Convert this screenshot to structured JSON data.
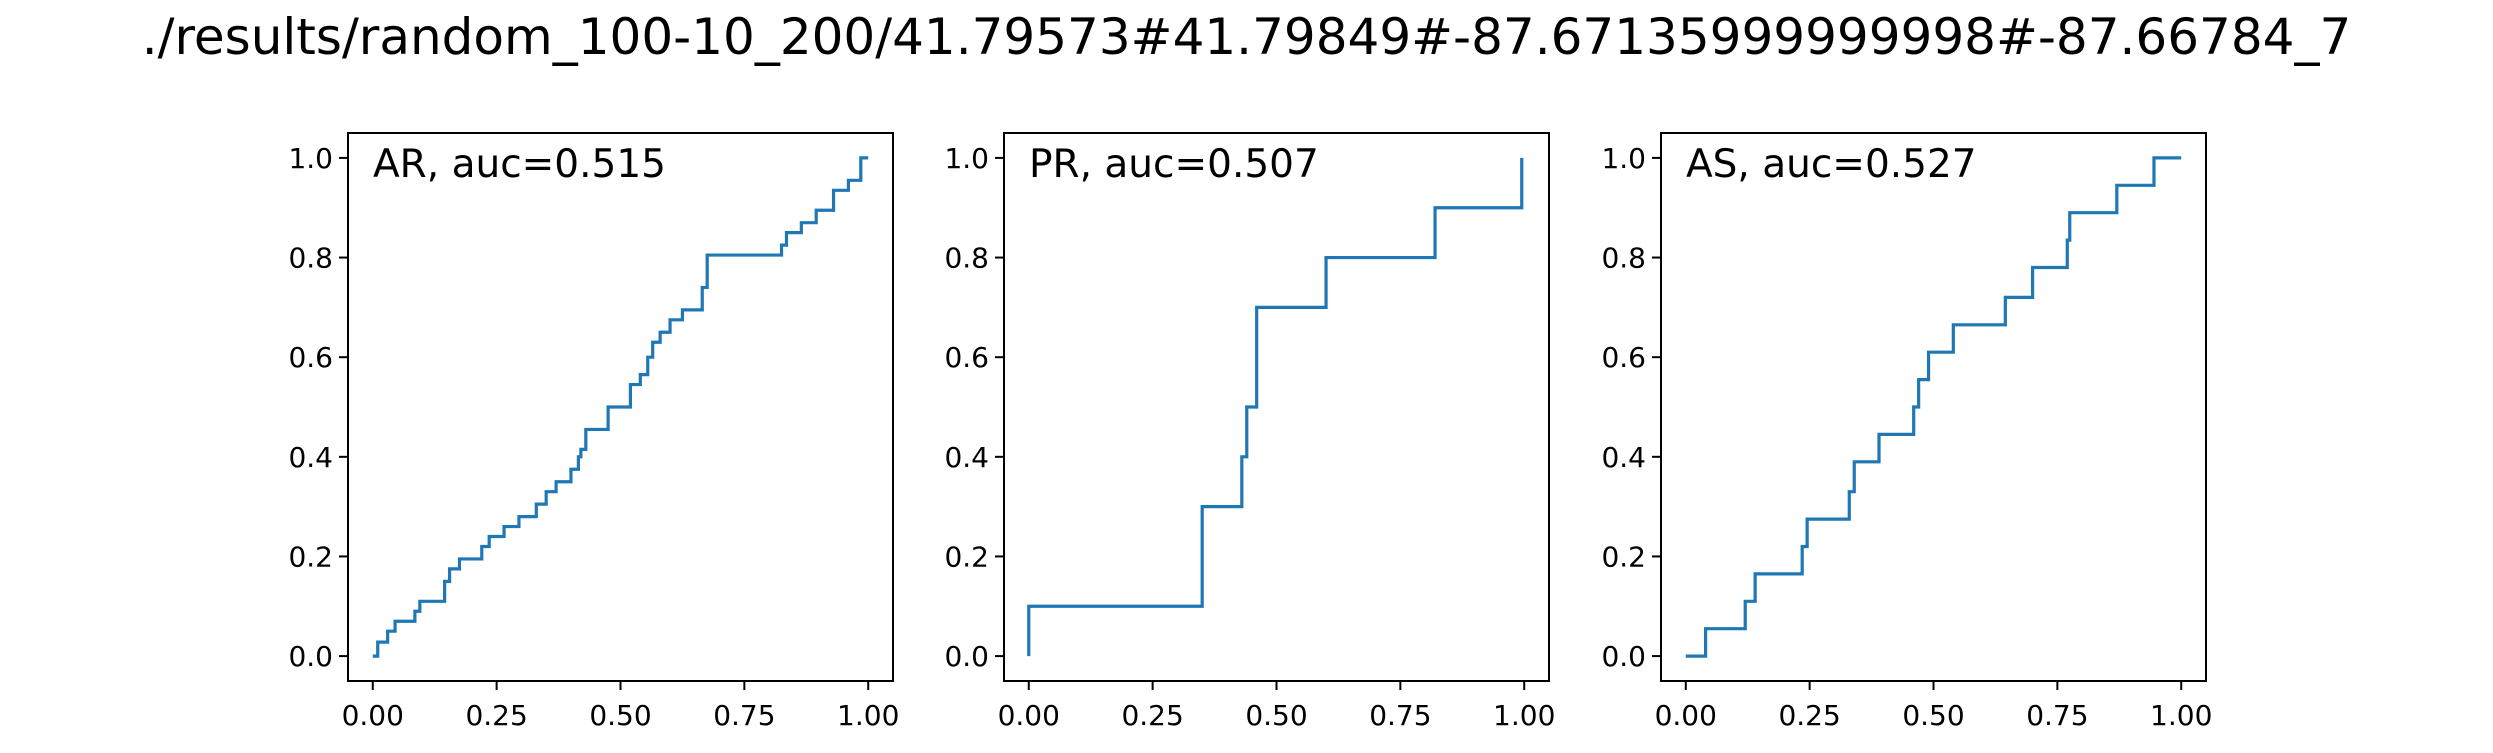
{
  "figure_title": "./results/random_100-10_200/41.79573#41.79849#-87.67135999999998#-87.66784_7",
  "line_color": "#1f77b4",
  "chart_data": [
    {
      "type": "line",
      "annotation": "AR, auc=0.515",
      "xlim": [
        -0.05,
        1.05
      ],
      "ylim": [
        -0.05,
        1.05
      ],
      "xticks": [
        0.0,
        0.25,
        0.5,
        0.75,
        1.0
      ],
      "xtick_labels": [
        "0.00",
        "0.25",
        "0.50",
        "0.75",
        "1.00"
      ],
      "yticks": [
        0.0,
        0.2,
        0.4,
        0.6,
        0.8,
        1.0
      ],
      "ytick_labels": [
        "0.0",
        "0.2",
        "0.4",
        "0.6",
        "0.8",
        "1.0"
      ],
      "series": [
        {
          "step": true,
          "x": [
            0.0,
            0.01,
            0.01,
            0.03,
            0.03,
            0.045,
            0.045,
            0.05,
            0.05,
            0.085,
            0.085,
            0.095,
            0.095,
            0.145,
            0.145,
            0.155,
            0.155,
            0.175,
            0.175,
            0.22,
            0.22,
            0.235,
            0.235,
            0.265,
            0.265,
            0.295,
            0.295,
            0.33,
            0.33,
            0.35,
            0.35,
            0.37,
            0.37,
            0.4,
            0.4,
            0.415,
            0.415,
            0.42,
            0.42,
            0.43,
            0.43,
            0.475,
            0.475,
            0.52,
            0.52,
            0.54,
            0.54,
            0.555,
            0.555,
            0.565,
            0.565,
            0.58,
            0.58,
            0.6,
            0.6,
            0.625,
            0.625,
            0.665,
            0.665,
            0.675,
            0.675,
            0.825,
            0.825,
            0.835,
            0.835,
            0.865,
            0.865,
            0.895,
            0.895,
            0.93,
            0.93,
            0.96,
            0.96,
            0.985,
            0.985,
            1.0
          ],
          "y": [
            0.0,
            0.0,
            0.028,
            0.028,
            0.05,
            0.05,
            0.07,
            0.07,
            0.07,
            0.07,
            0.09,
            0.09,
            0.11,
            0.11,
            0.15,
            0.15,
            0.175,
            0.175,
            0.195,
            0.195,
            0.22,
            0.22,
            0.24,
            0.24,
            0.26,
            0.26,
            0.28,
            0.28,
            0.305,
            0.305,
            0.33,
            0.33,
            0.35,
            0.35,
            0.375,
            0.375,
            0.4,
            0.4,
            0.415,
            0.415,
            0.455,
            0.455,
            0.5,
            0.5,
            0.545,
            0.545,
            0.565,
            0.565,
            0.6,
            0.6,
            0.63,
            0.63,
            0.65,
            0.65,
            0.675,
            0.675,
            0.695,
            0.695,
            0.74,
            0.74,
            0.805,
            0.805,
            0.825,
            0.825,
            0.85,
            0.85,
            0.87,
            0.87,
            0.895,
            0.895,
            0.935,
            0.935,
            0.955,
            0.955,
            1.0,
            1.0
          ]
        }
      ]
    },
    {
      "type": "line",
      "annotation": "PR, auc=0.507",
      "xlim": [
        -0.05,
        1.05
      ],
      "ylim": [
        -0.05,
        1.05
      ],
      "xticks": [
        0.0,
        0.25,
        0.5,
        0.75,
        1.0
      ],
      "xtick_labels": [
        "0.00",
        "0.25",
        "0.50",
        "0.75",
        "1.00"
      ],
      "yticks": [
        0.0,
        0.2,
        0.4,
        0.6,
        0.8,
        1.0
      ],
      "ytick_labels": [
        "0.0",
        "0.2",
        "0.4",
        "0.6",
        "0.8",
        "1.0"
      ],
      "series": [
        {
          "step": true,
          "x": [
            0.0,
            0.0,
            0.35,
            0.35,
            0.43,
            0.43,
            0.44,
            0.44,
            0.46,
            0.46,
            0.6,
            0.6,
            0.82,
            0.82,
            0.995,
            0.995
          ],
          "y": [
            0.0,
            0.1,
            0.1,
            0.3,
            0.3,
            0.4,
            0.4,
            0.5,
            0.5,
            0.7,
            0.7,
            0.8,
            0.8,
            0.9,
            0.9,
            1.0
          ]
        }
      ]
    },
    {
      "type": "line",
      "annotation": "AS, auc=0.527",
      "xlim": [
        -0.05,
        1.05
      ],
      "ylim": [
        -0.05,
        1.05
      ],
      "xticks": [
        0.0,
        0.25,
        0.5,
        0.75,
        1.0
      ],
      "xtick_labels": [
        "0.00",
        "0.25",
        "0.50",
        "0.75",
        "1.00"
      ],
      "yticks": [
        0.0,
        0.2,
        0.4,
        0.6,
        0.8,
        1.0
      ],
      "ytick_labels": [
        "0.0",
        "0.2",
        "0.4",
        "0.6",
        "0.8",
        "1.0"
      ],
      "series": [
        {
          "step": true,
          "x": [
            0.0,
            0.04,
            0.04,
            0.12,
            0.12,
            0.14,
            0.14,
            0.235,
            0.235,
            0.245,
            0.245,
            0.33,
            0.33,
            0.34,
            0.34,
            0.39,
            0.39,
            0.46,
            0.46,
            0.47,
            0.47,
            0.49,
            0.49,
            0.54,
            0.54,
            0.645,
            0.645,
            0.7,
            0.7,
            0.77,
            0.77,
            0.775,
            0.775,
            0.87,
            0.87,
            0.945,
            0.945,
            1.0
          ],
          "y": [
            0.0,
            0.0,
            0.055,
            0.055,
            0.11,
            0.11,
            0.165,
            0.165,
            0.22,
            0.22,
            0.275,
            0.275,
            0.33,
            0.33,
            0.39,
            0.39,
            0.445,
            0.445,
            0.5,
            0.5,
            0.555,
            0.555,
            0.61,
            0.61,
            0.665,
            0.665,
            0.72,
            0.72,
            0.78,
            0.78,
            0.835,
            0.835,
            0.89,
            0.89,
            0.945,
            0.945,
            1.0,
            1.0
          ]
        }
      ]
    }
  ]
}
